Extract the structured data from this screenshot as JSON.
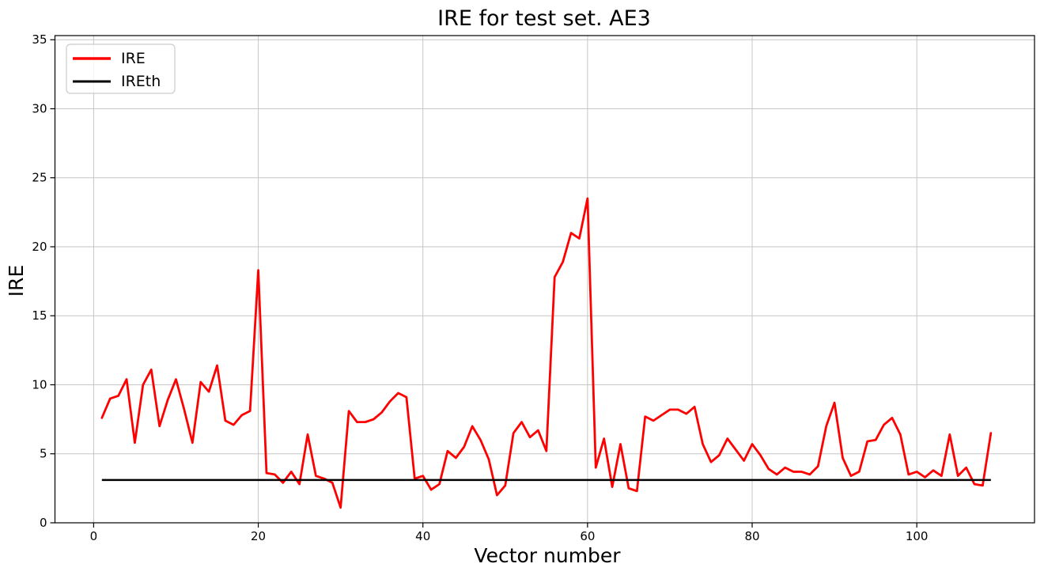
{
  "chart_data": {
    "type": "line",
    "title": "IRE for test set. AE3",
    "xlabel": "Vector number",
    "ylabel": "IRE",
    "xlim": [
      -4.7,
      114.3
    ],
    "ylim": [
      0,
      35.3
    ],
    "xticks": [
      0,
      20,
      40,
      60,
      80,
      100
    ],
    "yticks": [
      0,
      5,
      10,
      15,
      20,
      25,
      30,
      35
    ],
    "grid": true,
    "grid_color": "#c6c6c6",
    "legend_position": "upper-left",
    "x_start": 1,
    "series": [
      {
        "name": "IRE",
        "color": "#ff0000",
        "values": [
          7.6,
          9.0,
          9.2,
          10.4,
          5.8,
          10.0,
          11.1,
          7.0,
          8.9,
          10.4,
          8.2,
          5.8,
          10.2,
          9.5,
          11.4,
          7.4,
          7.1,
          7.8,
          8.1,
          18.3,
          3.6,
          3.5,
          2.9,
          3.7,
          2.8,
          6.4,
          3.4,
          3.2,
          2.9,
          1.1,
          8.1,
          7.3,
          7.3,
          7.5,
          8.0,
          8.8,
          9.4,
          9.1,
          3.2,
          3.4,
          2.4,
          2.8,
          5.2,
          4.7,
          5.5,
          7.0,
          6.0,
          4.6,
          2.0,
          2.7,
          6.5,
          7.3,
          6.2,
          6.7,
          5.2,
          17.8,
          18.9,
          21.0,
          20.6,
          23.5,
          4.0,
          6.1,
          2.6,
          5.7,
          2.5,
          2.3,
          7.7,
          7.4,
          7.8,
          8.2,
          8.2,
          7.9,
          8.4,
          5.7,
          4.4,
          4.9,
          6.1,
          5.3,
          4.5,
          5.7,
          4.9,
          3.9,
          3.5,
          4.0,
          3.7,
          3.7,
          3.5,
          4.1,
          7.0,
          8.7,
          4.7,
          3.4,
          3.7,
          5.9,
          6.0,
          7.1,
          7.6,
          6.4,
          3.5,
          3.7,
          3.3,
          3.8,
          3.4,
          6.4,
          3.4,
          4.0,
          2.8,
          2.7,
          6.5
        ]
      },
      {
        "name": "IREth",
        "color": "#000000",
        "constant": 3.1,
        "x_range": [
          1,
          109
        ]
      }
    ]
  }
}
